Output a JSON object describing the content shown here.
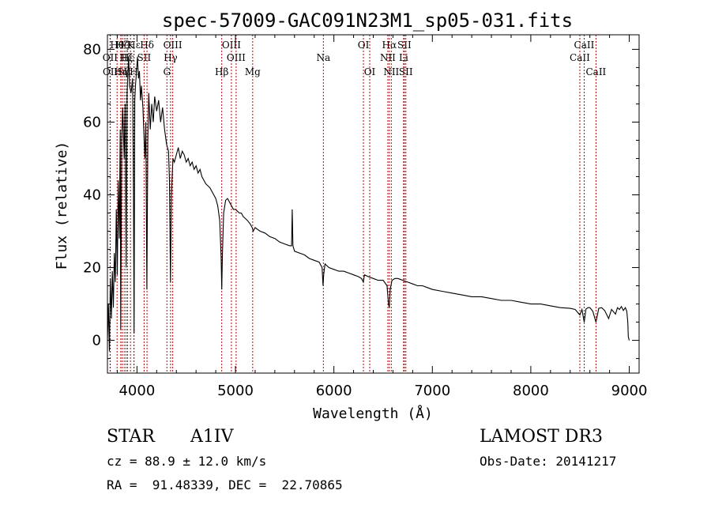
{
  "chart_data": {
    "type": "line",
    "title": "spec-57009-GAC091N23M1_sp05-031.fits",
    "xlabel": "Wavelength (Å)",
    "ylabel": "Flux (relative)",
    "xlim": [
      3700,
      9100
    ],
    "ylim": [
      -9,
      84
    ],
    "x_ticks": [
      4000,
      5000,
      6000,
      7000,
      8000,
      9000
    ],
    "y_ticks": [
      0,
      20,
      40,
      60,
      80
    ],
    "series": [
      {
        "name": "flux",
        "points": [
          [
            3700,
            0
          ],
          [
            3710,
            10
          ],
          [
            3720,
            -3
          ],
          [
            3730,
            17
          ],
          [
            3740,
            6
          ],
          [
            3750,
            19
          ],
          [
            3760,
            9
          ],
          [
            3770,
            24
          ],
          [
            3780,
            16
          ],
          [
            3790,
            36
          ],
          [
            3800,
            18
          ],
          [
            3810,
            44
          ],
          [
            3820,
            28
          ],
          [
            3830,
            58
          ],
          [
            3835,
            3
          ],
          [
            3845,
            55
          ],
          [
            3855,
            64
          ],
          [
            3870,
            50
          ],
          [
            3880,
            65
          ],
          [
            3890,
            20
          ],
          [
            3900,
            68
          ],
          [
            3915,
            78
          ],
          [
            3925,
            70
          ],
          [
            3940,
            68
          ],
          [
            3955,
            72
          ],
          [
            3965,
            40
          ],
          [
            3970,
            2
          ],
          [
            3978,
            66
          ],
          [
            3985,
            70
          ],
          [
            3995,
            74
          ],
          [
            4005,
            78
          ],
          [
            4015,
            72
          ],
          [
            4025,
            74
          ],
          [
            4035,
            66
          ],
          [
            4045,
            70
          ],
          [
            4060,
            64
          ],
          [
            4080,
            50
          ],
          [
            4090,
            60
          ],
          [
            4100,
            14
          ],
          [
            4110,
            55
          ],
          [
            4120,
            68
          ],
          [
            4135,
            58
          ],
          [
            4150,
            65
          ],
          [
            4165,
            60
          ],
          [
            4180,
            67
          ],
          [
            4200,
            63
          ],
          [
            4220,
            66
          ],
          [
            4240,
            60
          ],
          [
            4260,
            64
          ],
          [
            4280,
            58
          ],
          [
            4300,
            54
          ],
          [
            4320,
            52
          ],
          [
            4330,
            44
          ],
          [
            4340,
            16
          ],
          [
            4350,
            40
          ],
          [
            4365,
            50
          ],
          [
            4380,
            49
          ],
          [
            4400,
            51
          ],
          [
            4420,
            53
          ],
          [
            4440,
            50
          ],
          [
            4460,
            52
          ],
          [
            4480,
            51
          ],
          [
            4500,
            49
          ],
          [
            4520,
            50
          ],
          [
            4540,
            48
          ],
          [
            4560,
            49
          ],
          [
            4580,
            47
          ],
          [
            4600,
            48
          ],
          [
            4620,
            46
          ],
          [
            4640,
            47
          ],
          [
            4660,
            45
          ],
          [
            4680,
            44
          ],
          [
            4700,
            43
          ],
          [
            4720,
            42.5
          ],
          [
            4740,
            42
          ],
          [
            4760,
            41
          ],
          [
            4780,
            40
          ],
          [
            4800,
            39
          ],
          [
            4820,
            37
          ],
          [
            4840,
            33
          ],
          [
            4855,
            23
          ],
          [
            4861,
            14
          ],
          [
            4868,
            24
          ],
          [
            4880,
            35
          ],
          [
            4900,
            38.5
          ],
          [
            4920,
            39
          ],
          [
            4940,
            38
          ],
          [
            4960,
            37
          ],
          [
            4980,
            36
          ],
          [
            5000,
            36
          ],
          [
            5020,
            35.5
          ],
          [
            5040,
            35
          ],
          [
            5060,
            35
          ],
          [
            5080,
            34
          ],
          [
            5100,
            33.5
          ],
          [
            5120,
            33
          ],
          [
            5150,
            32
          ],
          [
            5170,
            31
          ],
          [
            5180,
            30
          ],
          [
            5200,
            31
          ],
          [
            5250,
            30
          ],
          [
            5300,
            29.5
          ],
          [
            5350,
            28.5
          ],
          [
            5400,
            28
          ],
          [
            5450,
            27
          ],
          [
            5500,
            26.5
          ],
          [
            5550,
            26
          ],
          [
            5570,
            26
          ],
          [
            5577,
            36
          ],
          [
            5584,
            26
          ],
          [
            5600,
            24.5
          ],
          [
            5650,
            24
          ],
          [
            5700,
            23.5
          ],
          [
            5750,
            22.5
          ],
          [
            5800,
            22
          ],
          [
            5850,
            21.5
          ],
          [
            5880,
            20
          ],
          [
            5890,
            15
          ],
          [
            5896,
            18
          ],
          [
            5910,
            21
          ],
          [
            5950,
            20
          ],
          [
            6000,
            19.5
          ],
          [
            6050,
            19
          ],
          [
            6100,
            19
          ],
          [
            6150,
            18.5
          ],
          [
            6200,
            18
          ],
          [
            6250,
            17.5
          ],
          [
            6280,
            17
          ],
          [
            6300,
            16
          ],
          [
            6310,
            18
          ],
          [
            6350,
            17.5
          ],
          [
            6400,
            17
          ],
          [
            6450,
            16.5
          ],
          [
            6500,
            16.5
          ],
          [
            6540,
            15
          ],
          [
            6555,
            10
          ],
          [
            6563,
            9
          ],
          [
            6572,
            14
          ],
          [
            6590,
            16.5
          ],
          [
            6620,
            17
          ],
          [
            6650,
            17
          ],
          [
            6700,
            16.5
          ],
          [
            6750,
            16
          ],
          [
            6800,
            15.5
          ],
          [
            6850,
            15
          ],
          [
            6900,
            15
          ],
          [
            6950,
            14.5
          ],
          [
            7000,
            14
          ],
          [
            7100,
            13.5
          ],
          [
            7200,
            13
          ],
          [
            7300,
            12.5
          ],
          [
            7400,
            12
          ],
          [
            7500,
            12
          ],
          [
            7600,
            11.5
          ],
          [
            7700,
            11
          ],
          [
            7800,
            11
          ],
          [
            7900,
            10.5
          ],
          [
            8000,
            10
          ],
          [
            8100,
            10
          ],
          [
            8200,
            9.5
          ],
          [
            8300,
            9
          ],
          [
            8400,
            8.8
          ],
          [
            8450,
            8.5
          ],
          [
            8498,
            7
          ],
          [
            8520,
            8.5
          ],
          [
            8542,
            5
          ],
          [
            8560,
            8.6
          ],
          [
            8580,
            9
          ],
          [
            8600,
            9
          ],
          [
            8630,
            8
          ],
          [
            8662,
            5
          ],
          [
            8690,
            8.8
          ],
          [
            8720,
            9
          ],
          [
            8750,
            8.2
          ],
          [
            8790,
            6
          ],
          [
            8820,
            8.5
          ],
          [
            8860,
            7.2
          ],
          [
            8880,
            9
          ],
          [
            8900,
            8.5
          ],
          [
            8920,
            9.3
          ],
          [
            8940,
            8.2
          ],
          [
            8960,
            9
          ],
          [
            8975,
            8
          ],
          [
            8985,
            5
          ],
          [
            8990,
            1
          ],
          [
            9000,
            0
          ]
        ]
      }
    ],
    "spectral_lines": [
      {
        "label": "Hβ",
        "wave": 4861,
        "row": 3
      },
      {
        "label": "OII",
        "wave": 3727,
        "row": 2
      },
      {
        "label": "OIII",
        "wave": 4959,
        "row": 1
      },
      {
        "label": "Hδ",
        "wave": 4102,
        "row": 1
      },
      {
        "label": "Hε",
        "wave": 3970,
        "row": 1
      },
      {
        "label": "CaII",
        "wave": 8498,
        "row": 2
      },
      {
        "label": "Hα",
        "wave": 6563,
        "row": 1
      },
      {
        "label": "Hη",
        "wave": 3835,
        "row": 3
      },
      {
        "label": "Hθ",
        "wave": 3798,
        "row": 1
      },
      {
        "label": "OIII",
        "wave": 4363,
        "row": 1
      },
      {
        "label": "Mg",
        "wave": 5175,
        "row": 3
      },
      {
        "label": "SII",
        "wave": 6716,
        "row": 1
      },
      {
        "label": "K",
        "wave": 3934,
        "row": 1
      },
      {
        "label": "Hγ",
        "wave": 4341,
        "row": 2
      },
      {
        "label": "Na",
        "wave": 5893,
        "row": 2
      },
      {
        "label": "OIII",
        "wave": 5007,
        "row": 2
      },
      {
        "label": "SII",
        "wave": 4072,
        "row": 2
      },
      {
        "label": "OI",
        "wave": 6300,
        "row": 1
      },
      {
        "label": "NII",
        "wave": 6583,
        "row": 3
      },
      {
        "label": "CaII",
        "wave": 8542,
        "row": 1
      },
      {
        "label": "G",
        "wave": 4304,
        "row": 3
      },
      {
        "label": "H",
        "wave": 3969,
        "row": 3
      },
      {
        "label": "Li",
        "wave": 6708,
        "row": 2
      },
      {
        "label": "NII",
        "wave": 6548,
        "row": 2
      },
      {
        "label": "SII",
        "wave": 6731,
        "row": 3
      },
      {
        "label": "OI",
        "wave": 6364,
        "row": 3
      },
      {
        "label": "CaII",
        "wave": 8662,
        "row": 3
      },
      {
        "label": "SII",
        "wave": 3870,
        "row": 3
      },
      {
        "label": "OII",
        "wave": 3729,
        "row": 3
      },
      {
        "label": "Hζ",
        "wave": 3889,
        "row": 2
      },
      {
        "label": "Hζ",
        "wave": 3850,
        "row": 1
      },
      {
        "label": "Hε",
        "wave": 3905,
        "row": 2
      }
    ]
  },
  "info": {
    "object_class": "STAR",
    "subclass": "A1IV",
    "survey": "LAMOST DR3",
    "redshift_text": "cz = 88.9 ± 12.0 km/s",
    "obs_date_text": "Obs-Date: 20141217",
    "coords_text": "RA =  91.48339, DEC =  22.70865"
  }
}
